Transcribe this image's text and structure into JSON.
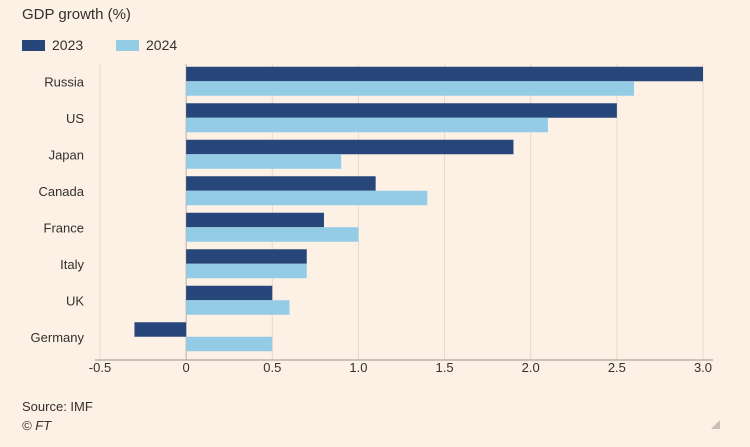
{
  "chart_data": {
    "type": "bar",
    "orientation": "horizontal",
    "title": "GDP growth (%)",
    "categories": [
      "Russia",
      "US",
      "Japan",
      "Canada",
      "France",
      "Italy",
      "UK",
      "Germany"
    ],
    "series": [
      {
        "name": "2023",
        "color": "#27477a",
        "values": [
          3.0,
          2.5,
          1.9,
          1.1,
          0.8,
          0.7,
          0.5,
          -0.3
        ]
      },
      {
        "name": "2024",
        "color": "#94cce6",
        "values": [
          2.6,
          2.1,
          0.9,
          1.4,
          1.0,
          0.7,
          0.6,
          0.5
        ]
      }
    ],
    "xlim": [
      -0.5,
      3.0
    ],
    "xticks": [
      -0.5,
      0,
      0.5,
      1.0,
      1.5,
      2.0,
      2.5,
      3.0
    ],
    "xtick_labels": [
      "-0.5",
      "0",
      "0.5",
      "1.0",
      "1.5",
      "2.0",
      "2.5",
      "3.0"
    ],
    "grid": "vertical",
    "legend_position": "top-left",
    "xlabel": "",
    "ylabel": ""
  },
  "footer": {
    "source": "Source: IMF",
    "copyright": "© FT"
  }
}
